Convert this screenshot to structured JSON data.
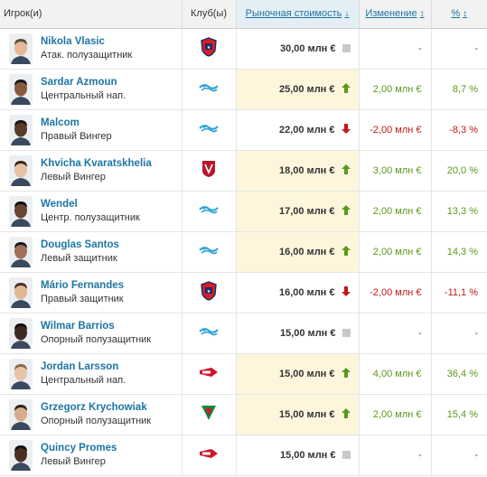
{
  "headers": {
    "player": "Игрок(и)",
    "club": "Клуб(ы)",
    "market_value": "Рыночная стоимость",
    "change": "Изменение",
    "percent": "%"
  },
  "sort_icons": {
    "market_value": "↓",
    "change": "↕",
    "percent": "↕"
  },
  "trend_colors": {
    "up": "#5a9a1a",
    "down": "#c01818",
    "none": "#c8c8c8"
  },
  "rows": [
    {
      "name": "Nikola Vlasic",
      "position": "Атак. полузащитник",
      "club": "cska-logo",
      "value": "30,00 млн €",
      "trend": "none",
      "change": "-",
      "percent": "-"
    },
    {
      "name": "Sardar Azmoun",
      "position": "Центральный нап.",
      "club": "zenit-logo",
      "value": "25,00 млн €",
      "trend": "up",
      "change": "2,00 млн €",
      "percent": "8,7 %"
    },
    {
      "name": "Malcom",
      "position": "Правый Вингер",
      "club": "zenit-logo",
      "value": "22,00 млн €",
      "trend": "down",
      "change": "-2,00 млн €",
      "percent": "-8,3 %"
    },
    {
      "name": "Khvicha Kvaratskhelia",
      "position": "Левый Вингер",
      "club": "rubin-logo",
      "value": "18,00 млн €",
      "trend": "up",
      "change": "3,00 млн €",
      "percent": "20,0 %"
    },
    {
      "name": "Wendel",
      "position": "Центр. полузащитник",
      "club": "zenit-logo",
      "value": "17,00 млн €",
      "trend": "up",
      "change": "2,00 млн €",
      "percent": "13,3 %"
    },
    {
      "name": "Douglas Santos",
      "position": "Левый защитник",
      "club": "zenit-logo",
      "value": "16,00 млн €",
      "trend": "up",
      "change": "2,00 млн €",
      "percent": "14,3 %"
    },
    {
      "name": "Mário Fernandes",
      "position": "Правый защитник",
      "club": "cska-logo",
      "value": "16,00 млн €",
      "trend": "down",
      "change": "-2,00 млн €",
      "percent": "-11,1 %"
    },
    {
      "name": "Wilmar Barrios",
      "position": "Опорный полузащитник",
      "club": "zenit-logo",
      "value": "15,00 млн €",
      "trend": "none",
      "change": "-",
      "percent": "-"
    },
    {
      "name": "Jordan Larsson",
      "position": "Центральный нап.",
      "club": "spartak-logo",
      "value": "15,00 млн €",
      "trend": "up",
      "change": "4,00 млн €",
      "percent": "36,4 %"
    },
    {
      "name": "Grzegorz Krychowiak",
      "position": "Опорный полузащитник",
      "club": "lokomotiv-logo",
      "value": "15,00 млн €",
      "trend": "up",
      "change": "2,00 млн €",
      "percent": "15,4 %"
    },
    {
      "name": "Quincy Promes",
      "position": "Левый Вингер",
      "club": "spartak-logo",
      "value": "15,00 млн €",
      "trend": "none",
      "change": "-",
      "percent": "-"
    }
  ]
}
